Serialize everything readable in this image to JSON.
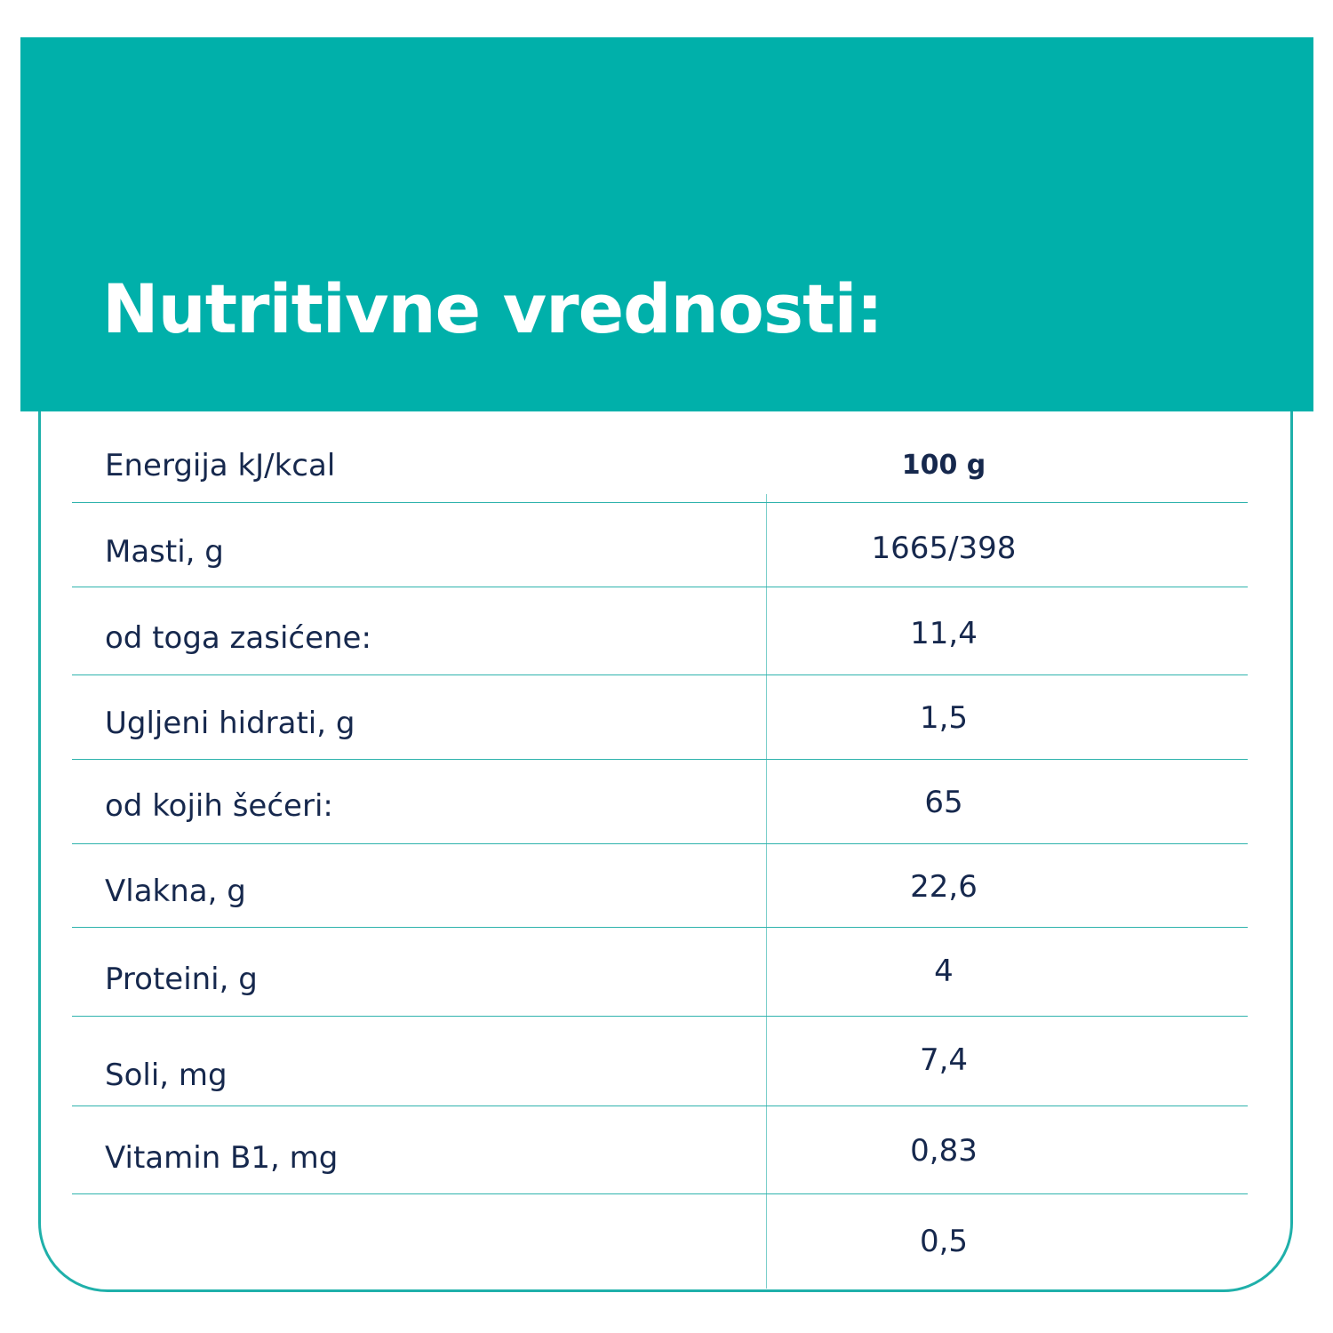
{
  "header": {
    "title": "Nutritivne vrednosti:"
  },
  "table": {
    "column_header": "100 g",
    "rows": [
      {
        "label": "Energija kJ/kcal",
        "value": ""
      },
      {
        "label": "Masti, g",
        "value": "1665/398"
      },
      {
        "label": "od toga zasićene:",
        "value": "11,4"
      },
      {
        "label": "Ugljeni hidrati, g",
        "value": "1,5"
      },
      {
        "label": "od kojih šećeri:",
        "value": "65"
      },
      {
        "label": "Vlakna, g",
        "value": "22,6"
      },
      {
        "label": "Proteini, g",
        "value": "4"
      },
      {
        "label": "Soli, mg",
        "value": "7,4"
      },
      {
        "label": "Vitamin B1, mg",
        "value": "0,83"
      },
      {
        "label": "",
        "value": "0,5"
      }
    ]
  },
  "colors": {
    "accent": "#00b0aa",
    "text": "#16284d",
    "title_text": "#ffffff"
  }
}
